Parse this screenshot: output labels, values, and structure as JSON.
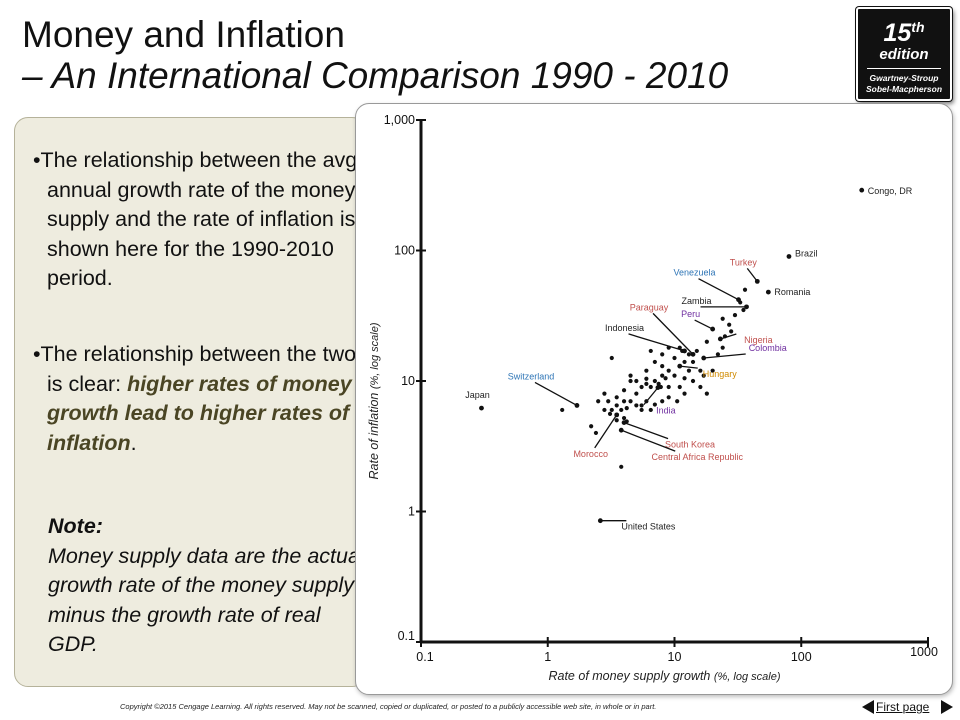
{
  "title": {
    "line1": "Money and Inflation",
    "line2": "– An International Comparison 1990 - 2010"
  },
  "badge": {
    "edition_number": "15",
    "edition_suffix": "th",
    "edition_word": "edition",
    "author1": "Gwartney-Stroup",
    "author2": "Sobel-Macpherson"
  },
  "left_panel": {
    "bullet1": "The relationship between the avg. annual growth rate of the money supply and the rate of inflation is shown here for the 1990-2010 period.",
    "bullet2_plain": "The relationship between the two is clear: ",
    "bullet2_highlight": "higher rates of money growth lead to higher rates of inflation",
    "bullet2_end": ".",
    "note_label": "Note:",
    "note_text": "Money supply data are the actual growth rate of the money supply minus the growth rate of real GDP."
  },
  "footer": {
    "copyright": "Copyright ©2015 Cengage Learning. All rights reserved. May not be scanned, copied or duplicated, or posted to a publicly accessible web site, in whole or in part.",
    "first_page": "First page"
  },
  "chart_data": {
    "type": "scatter",
    "xlabel": "Rate of money supply growth",
    "xlabel_note": "(%, log scale)",
    "ylabel": "Rate of inflation",
    "ylabel_note": "(%, log scale)",
    "xscale": "log",
    "yscale": "log",
    "xlim": [
      0.1,
      1000
    ],
    "ylim": [
      0.1,
      1000
    ],
    "xticks": [
      0.1,
      1,
      10,
      100,
      1000
    ],
    "xtick_labels": [
      "0.1",
      "1",
      "10",
      "100",
      "1000"
    ],
    "yticks": [
      0.1,
      1,
      10,
      100,
      1000
    ],
    "ytick_labels": [
      "0.1",
      "1",
      "10",
      "100",
      "1,000"
    ],
    "grid": false,
    "labeled_points": [
      {
        "name": "Congo, DR",
        "x": 300,
        "y": 290,
        "color": "#222222"
      },
      {
        "name": "Brazil",
        "x": 80,
        "y": 90,
        "color": "#222222"
      },
      {
        "name": "Romania",
        "x": 55,
        "y": 48,
        "color": "#222222"
      },
      {
        "name": "Turkey",
        "x": 45,
        "y": 58,
        "color": "#c0504d"
      },
      {
        "name": "Venezuela",
        "x": 32,
        "y": 42,
        "color": "#2e75b6"
      },
      {
        "name": "Zambia",
        "x": 37,
        "y": 37,
        "color": "#222222"
      },
      {
        "name": "Nigeria",
        "x": 23,
        "y": 21,
        "color": "#c0504d"
      },
      {
        "name": "Peru",
        "x": 20,
        "y": 25,
        "color": "#7030a0"
      },
      {
        "name": "Paraguay",
        "x": 14,
        "y": 16,
        "color": "#c0504d"
      },
      {
        "name": "Indonesia",
        "x": 12,
        "y": 17,
        "color": "#222222"
      },
      {
        "name": "Colombia",
        "x": 17,
        "y": 15,
        "color": "#7030a0"
      },
      {
        "name": "Hungary",
        "x": 11,
        "y": 13,
        "color": "#d08a00"
      },
      {
        "name": "Switzerland",
        "x": 1.7,
        "y": 6.5,
        "color": "#2e75b6"
      },
      {
        "name": "Japan",
        "x": 0.3,
        "y": 6.2,
        "color": "#222222"
      },
      {
        "name": "India",
        "x": 7.4,
        "y": 8.9,
        "color": "#7030a0"
      },
      {
        "name": "South Korea",
        "x": 4,
        "y": 4.8,
        "color": "#c0504d"
      },
      {
        "name": "Morocco",
        "x": 3.5,
        "y": 5.5,
        "color": "#c0504d"
      },
      {
        "name": "Central Africa Republic",
        "x": 3.8,
        "y": 4.2,
        "color": "#c0504d"
      },
      {
        "name": "United States",
        "x": 2.6,
        "y": 0.85,
        "color": "#222222"
      }
    ],
    "other_points": [
      [
        6.5,
        17
      ],
      [
        7,
        14
      ],
      [
        8,
        16
      ],
      [
        9,
        18
      ],
      [
        10,
        15
      ],
      [
        11,
        18
      ],
      [
        12,
        14
      ],
      [
        13,
        16
      ],
      [
        15,
        17
      ],
      [
        18,
        20
      ],
      [
        16,
        12
      ],
      [
        9,
        12
      ],
      [
        8,
        13
      ],
      [
        6,
        12
      ],
      [
        5,
        10
      ],
      [
        5.5,
        9
      ],
      [
        4.5,
        10
      ],
      [
        4,
        8.5
      ],
      [
        4,
        7
      ],
      [
        3.5,
        7.5
      ],
      [
        3,
        7
      ],
      [
        2.8,
        8
      ],
      [
        2.5,
        7
      ],
      [
        3.2,
        6
      ],
      [
        3.5,
        6.5
      ],
      [
        3.8,
        6
      ],
      [
        4.2,
        6.2
      ],
      [
        4.5,
        7
      ],
      [
        5,
        6.5
      ],
      [
        5.5,
        6.5
      ],
      [
        6,
        7
      ],
      [
        6.5,
        9
      ],
      [
        7,
        10
      ],
      [
        7.5,
        9.5
      ],
      [
        8,
        11
      ],
      [
        8.5,
        10.5
      ],
      [
        9,
        9
      ],
      [
        10,
        11
      ],
      [
        11,
        9
      ],
      [
        12,
        10.5
      ],
      [
        13,
        12
      ],
      [
        14,
        14
      ],
      [
        16,
        9
      ],
      [
        17,
        11
      ],
      [
        18,
        8
      ],
      [
        20,
        12
      ],
      [
        22,
        16
      ],
      [
        24,
        18
      ],
      [
        25,
        22
      ],
      [
        27,
        27
      ],
      [
        28,
        24
      ],
      [
        30,
        32
      ],
      [
        33,
        40
      ],
      [
        24,
        30
      ],
      [
        35,
        35
      ],
      [
        36,
        50
      ],
      [
        3.2,
        15
      ],
      [
        7.8,
        9
      ],
      [
        10.5,
        7
      ],
      [
        12,
        8
      ],
      [
        14,
        10
      ],
      [
        9,
        7.5
      ],
      [
        8,
        7
      ],
      [
        6.5,
        6
      ],
      [
        6,
        9.5
      ],
      [
        5,
        8
      ],
      [
        2.2,
        4.5
      ],
      [
        3.5,
        5
      ],
      [
        4,
        5.2
      ],
      [
        4.2,
        4.9
      ],
      [
        5.5,
        6
      ],
      [
        7,
        6.6
      ],
      [
        6,
        10.4
      ],
      [
        11.5,
        17
      ],
      [
        1.3,
        6
      ],
      [
        2.4,
        4
      ],
      [
        2.8,
        6
      ],
      [
        3.8,
        2.2
      ],
      [
        3.1,
        5.6
      ],
      [
        4.5,
        11
      ]
    ]
  }
}
